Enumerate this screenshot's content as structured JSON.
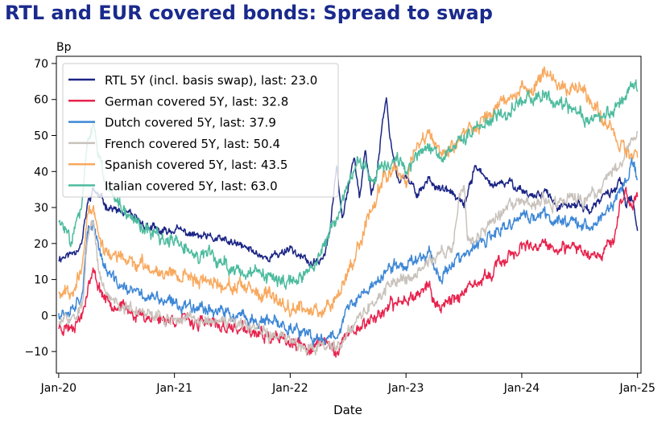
{
  "chart_data": {
    "type": "line",
    "title": "RTL and EUR covered bonds: Spread to swap",
    "ylabel": "Bp",
    "xlabel": "Date",
    "ylim": [
      -16,
      72
    ],
    "yticks": [
      -10,
      0,
      10,
      20,
      30,
      40,
      50,
      60,
      70
    ],
    "xlim": [
      -0.02,
      5.03
    ],
    "xticks": [
      {
        "t": 0,
        "label": "Jan-20"
      },
      {
        "t": 1,
        "label": "Jan-21"
      },
      {
        "t": 2,
        "label": "Jan-22"
      },
      {
        "t": 3,
        "label": "Jan-23"
      },
      {
        "t": 4,
        "label": "Jan-24"
      },
      {
        "t": 5,
        "label": "Jan-25"
      }
    ],
    "legend_position": "top-left",
    "x_unit": "years since Jan-2020",
    "series": [
      {
        "name": "RTL 5Y (incl. basis swap), last: 23.0",
        "color": "#1b2585",
        "noise": 0.6,
        "seed": 11,
        "points": [
          [
            0,
            16
          ],
          [
            0.1,
            17
          ],
          [
            0.2,
            20
          ],
          [
            0.25,
            31
          ],
          [
            0.3,
            35
          ],
          [
            0.4,
            31
          ],
          [
            0.5,
            29
          ],
          [
            0.6,
            28
          ],
          [
            0.75,
            25
          ],
          [
            0.9,
            23
          ],
          [
            1.0,
            24
          ],
          [
            1.2,
            22
          ],
          [
            1.4,
            21
          ],
          [
            1.6,
            19
          ],
          [
            1.8,
            16
          ],
          [
            1.9,
            17
          ],
          [
            2.0,
            19
          ],
          [
            2.1,
            16
          ],
          [
            2.2,
            14
          ],
          [
            2.3,
            17
          ],
          [
            2.35,
            25
          ],
          [
            2.4,
            42
          ],
          [
            2.45,
            28
          ],
          [
            2.5,
            36
          ],
          [
            2.55,
            44
          ],
          [
            2.6,
            33
          ],
          [
            2.65,
            45
          ],
          [
            2.7,
            34
          ],
          [
            2.75,
            40
          ],
          [
            2.8,
            55
          ],
          [
            2.83,
            60
          ],
          [
            2.87,
            48
          ],
          [
            2.93,
            38
          ],
          [
            3.0,
            38
          ],
          [
            3.1,
            34
          ],
          [
            3.2,
            38
          ],
          [
            3.3,
            35
          ],
          [
            3.4,
            34
          ],
          [
            3.5,
            30
          ],
          [
            3.6,
            42
          ],
          [
            3.7,
            37
          ],
          [
            3.8,
            36
          ],
          [
            3.9,
            37
          ],
          [
            4.0,
            35
          ],
          [
            4.1,
            33
          ],
          [
            4.2,
            35
          ],
          [
            4.3,
            30
          ],
          [
            4.4,
            30
          ],
          [
            4.5,
            31
          ],
          [
            4.6,
            29
          ],
          [
            4.7,
            33
          ],
          [
            4.8,
            35
          ],
          [
            4.85,
            38
          ],
          [
            4.9,
            30
          ],
          [
            4.95,
            33
          ],
          [
            5.0,
            23
          ]
        ]
      },
      {
        "name": "German covered 5Y, last: 32.8",
        "color": "#e8234d",
        "noise": 0.9,
        "seed": 23,
        "points": [
          [
            0,
            -3
          ],
          [
            0.1,
            -3
          ],
          [
            0.2,
            0
          ],
          [
            0.25,
            8
          ],
          [
            0.3,
            12
          ],
          [
            0.35,
            8
          ],
          [
            0.4,
            5
          ],
          [
            0.5,
            3
          ],
          [
            0.7,
            0
          ],
          [
            0.9,
            -1
          ],
          [
            1.0,
            -1
          ],
          [
            1.2,
            -2
          ],
          [
            1.4,
            -3
          ],
          [
            1.6,
            -4
          ],
          [
            1.8,
            -6
          ],
          [
            2.0,
            -8
          ],
          [
            2.2,
            -9
          ],
          [
            2.3,
            -7
          ],
          [
            2.4,
            -10
          ],
          [
            2.5,
            -5
          ],
          [
            2.6,
            -3
          ],
          [
            2.7,
            -1
          ],
          [
            2.8,
            1
          ],
          [
            2.9,
            3
          ],
          [
            3.0,
            5
          ],
          [
            3.1,
            6
          ],
          [
            3.2,
            9
          ],
          [
            3.25,
            2
          ],
          [
            3.3,
            3
          ],
          [
            3.4,
            5
          ],
          [
            3.5,
            6
          ],
          [
            3.6,
            8
          ],
          [
            3.7,
            11
          ],
          [
            3.8,
            14
          ],
          [
            3.9,
            17
          ],
          [
            4.0,
            19
          ],
          [
            4.1,
            18
          ],
          [
            4.2,
            20
          ],
          [
            4.3,
            18
          ],
          [
            4.4,
            18
          ],
          [
            4.5,
            19
          ],
          [
            4.6,
            17
          ],
          [
            4.7,
            18
          ],
          [
            4.8,
            22
          ],
          [
            4.85,
            30
          ],
          [
            4.9,
            34
          ],
          [
            4.95,
            30
          ],
          [
            5.0,
            33
          ]
        ]
      },
      {
        "name": "Dutch covered 5Y, last: 37.9",
        "color": "#3d87d6",
        "noise": 0.9,
        "seed": 37,
        "points": [
          [
            0,
            1
          ],
          [
            0.1,
            2
          ],
          [
            0.2,
            6
          ],
          [
            0.25,
            22
          ],
          [
            0.3,
            26
          ],
          [
            0.35,
            19
          ],
          [
            0.4,
            13
          ],
          [
            0.5,
            9
          ],
          [
            0.6,
            7
          ],
          [
            0.8,
            5
          ],
          [
            1.0,
            3
          ],
          [
            1.2,
            3
          ],
          [
            1.4,
            1
          ],
          [
            1.6,
            -1
          ],
          [
            1.8,
            -2
          ],
          [
            2.0,
            -3
          ],
          [
            2.1,
            -5
          ],
          [
            2.2,
            -7
          ],
          [
            2.3,
            -6
          ],
          [
            2.4,
            -5
          ],
          [
            2.5,
            2
          ],
          [
            2.6,
            5
          ],
          [
            2.7,
            8
          ],
          [
            2.8,
            11
          ],
          [
            2.9,
            14
          ],
          [
            3.0,
            14
          ],
          [
            3.1,
            16
          ],
          [
            3.2,
            18
          ],
          [
            3.3,
            10
          ],
          [
            3.4,
            15
          ],
          [
            3.5,
            16
          ],
          [
            3.6,
            19
          ],
          [
            3.7,
            21
          ],
          [
            3.8,
            23
          ],
          [
            3.9,
            25
          ],
          [
            4.0,
            28
          ],
          [
            4.1,
            27
          ],
          [
            4.2,
            28
          ],
          [
            4.3,
            26
          ],
          [
            4.4,
            27
          ],
          [
            4.5,
            26
          ],
          [
            4.6,
            24
          ],
          [
            4.7,
            28
          ],
          [
            4.8,
            31
          ],
          [
            4.9,
            38
          ],
          [
            4.95,
            42
          ],
          [
            5.0,
            38
          ]
        ]
      },
      {
        "name": "French covered 5Y, last: 50.4",
        "color": "#c9c2bc",
        "noise": 0.9,
        "seed": 51,
        "points": [
          [
            0,
            -2
          ],
          [
            0.1,
            -1
          ],
          [
            0.2,
            2
          ],
          [
            0.25,
            21
          ],
          [
            0.3,
            25
          ],
          [
            0.35,
            12
          ],
          [
            0.4,
            6
          ],
          [
            0.5,
            4
          ],
          [
            0.6,
            2
          ],
          [
            0.8,
            0
          ],
          [
            1.0,
            -1
          ],
          [
            1.2,
            -1
          ],
          [
            1.4,
            -2
          ],
          [
            1.6,
            -3
          ],
          [
            1.8,
            -5
          ],
          [
            2.0,
            -7
          ],
          [
            2.2,
            -9
          ],
          [
            2.3,
            -8
          ],
          [
            2.4,
            -9
          ],
          [
            2.5,
            -4
          ],
          [
            2.6,
            0
          ],
          [
            2.7,
            3
          ],
          [
            2.8,
            6
          ],
          [
            2.9,
            10
          ],
          [
            3.0,
            10
          ],
          [
            3.1,
            12
          ],
          [
            3.2,
            15
          ],
          [
            3.3,
            17
          ],
          [
            3.4,
            19
          ],
          [
            3.45,
            30
          ],
          [
            3.5,
            37
          ],
          [
            3.53,
            22
          ],
          [
            3.6,
            21
          ],
          [
            3.7,
            25
          ],
          [
            3.8,
            28
          ],
          [
            3.9,
            30
          ],
          [
            4.0,
            32
          ],
          [
            4.1,
            30
          ],
          [
            4.2,
            32
          ],
          [
            4.3,
            30
          ],
          [
            4.4,
            33
          ],
          [
            4.5,
            32
          ],
          [
            4.6,
            33
          ],
          [
            4.7,
            36
          ],
          [
            4.8,
            40
          ],
          [
            4.9,
            45
          ],
          [
            4.95,
            48
          ],
          [
            5.0,
            50
          ]
        ]
      },
      {
        "name": "Spanish covered 5Y, last: 43.5",
        "color": "#f8a95e",
        "noise": 1.0,
        "seed": 67,
        "points": [
          [
            0,
            7
          ],
          [
            0.1,
            7
          ],
          [
            0.2,
            12
          ],
          [
            0.25,
            28
          ],
          [
            0.3,
            30
          ],
          [
            0.35,
            22
          ],
          [
            0.4,
            18
          ],
          [
            0.5,
            16
          ],
          [
            0.6,
            15
          ],
          [
            0.8,
            13
          ],
          [
            1.0,
            12
          ],
          [
            1.2,
            10
          ],
          [
            1.4,
            9
          ],
          [
            1.6,
            7
          ],
          [
            1.8,
            5
          ],
          [
            2.0,
            3
          ],
          [
            2.2,
            1
          ],
          [
            2.3,
            2
          ],
          [
            2.4,
            6
          ],
          [
            2.5,
            12
          ],
          [
            2.6,
            20
          ],
          [
            2.7,
            30
          ],
          [
            2.8,
            38
          ],
          [
            2.9,
            42
          ],
          [
            3.0,
            38
          ],
          [
            3.1,
            48
          ],
          [
            3.2,
            50
          ],
          [
            3.3,
            45
          ],
          [
            3.4,
            46
          ],
          [
            3.5,
            50
          ],
          [
            3.6,
            53
          ],
          [
            3.7,
            55
          ],
          [
            3.8,
            58
          ],
          [
            3.9,
            61
          ],
          [
            4.0,
            64
          ],
          [
            4.1,
            62
          ],
          [
            4.2,
            68
          ],
          [
            4.3,
            65
          ],
          [
            4.4,
            62
          ],
          [
            4.5,
            64
          ],
          [
            4.6,
            60
          ],
          [
            4.7,
            55
          ],
          [
            4.8,
            50
          ],
          [
            4.9,
            46
          ],
          [
            4.95,
            45
          ],
          [
            5.0,
            43.5
          ]
        ]
      },
      {
        "name": "Italian covered 5Y, last: 63.0",
        "color": "#4dbb9e",
        "noise": 1.0,
        "seed": 83,
        "points": [
          [
            0,
            26
          ],
          [
            0.1,
            22
          ],
          [
            0.2,
            30
          ],
          [
            0.25,
            48
          ],
          [
            0.3,
            52
          ],
          [
            0.35,
            44
          ],
          [
            0.4,
            37
          ],
          [
            0.5,
            33
          ],
          [
            0.6,
            28
          ],
          [
            0.8,
            23
          ],
          [
            1.0,
            20
          ],
          [
            1.2,
            17
          ],
          [
            1.4,
            15
          ],
          [
            1.6,
            12
          ],
          [
            1.8,
            10
          ],
          [
            2.0,
            9
          ],
          [
            2.1,
            11
          ],
          [
            2.2,
            14
          ],
          [
            2.3,
            20
          ],
          [
            2.4,
            27
          ],
          [
            2.5,
            35
          ],
          [
            2.6,
            45
          ],
          [
            2.7,
            38
          ],
          [
            2.8,
            42
          ],
          [
            2.9,
            44
          ],
          [
            3.0,
            41
          ],
          [
            3.1,
            44
          ],
          [
            3.2,
            47
          ],
          [
            3.3,
            44
          ],
          [
            3.4,
            48
          ],
          [
            3.5,
            50
          ],
          [
            3.6,
            52
          ],
          [
            3.7,
            54
          ],
          [
            3.8,
            55
          ],
          [
            3.9,
            57
          ],
          [
            4.0,
            60
          ],
          [
            4.1,
            60
          ],
          [
            4.2,
            62
          ],
          [
            4.3,
            58
          ],
          [
            4.4,
            58
          ],
          [
            4.5,
            56
          ],
          [
            4.6,
            55
          ],
          [
            4.7,
            55
          ],
          [
            4.8,
            57
          ],
          [
            4.9,
            62
          ],
          [
            4.95,
            63
          ],
          [
            5.0,
            63
          ]
        ]
      }
    ]
  }
}
